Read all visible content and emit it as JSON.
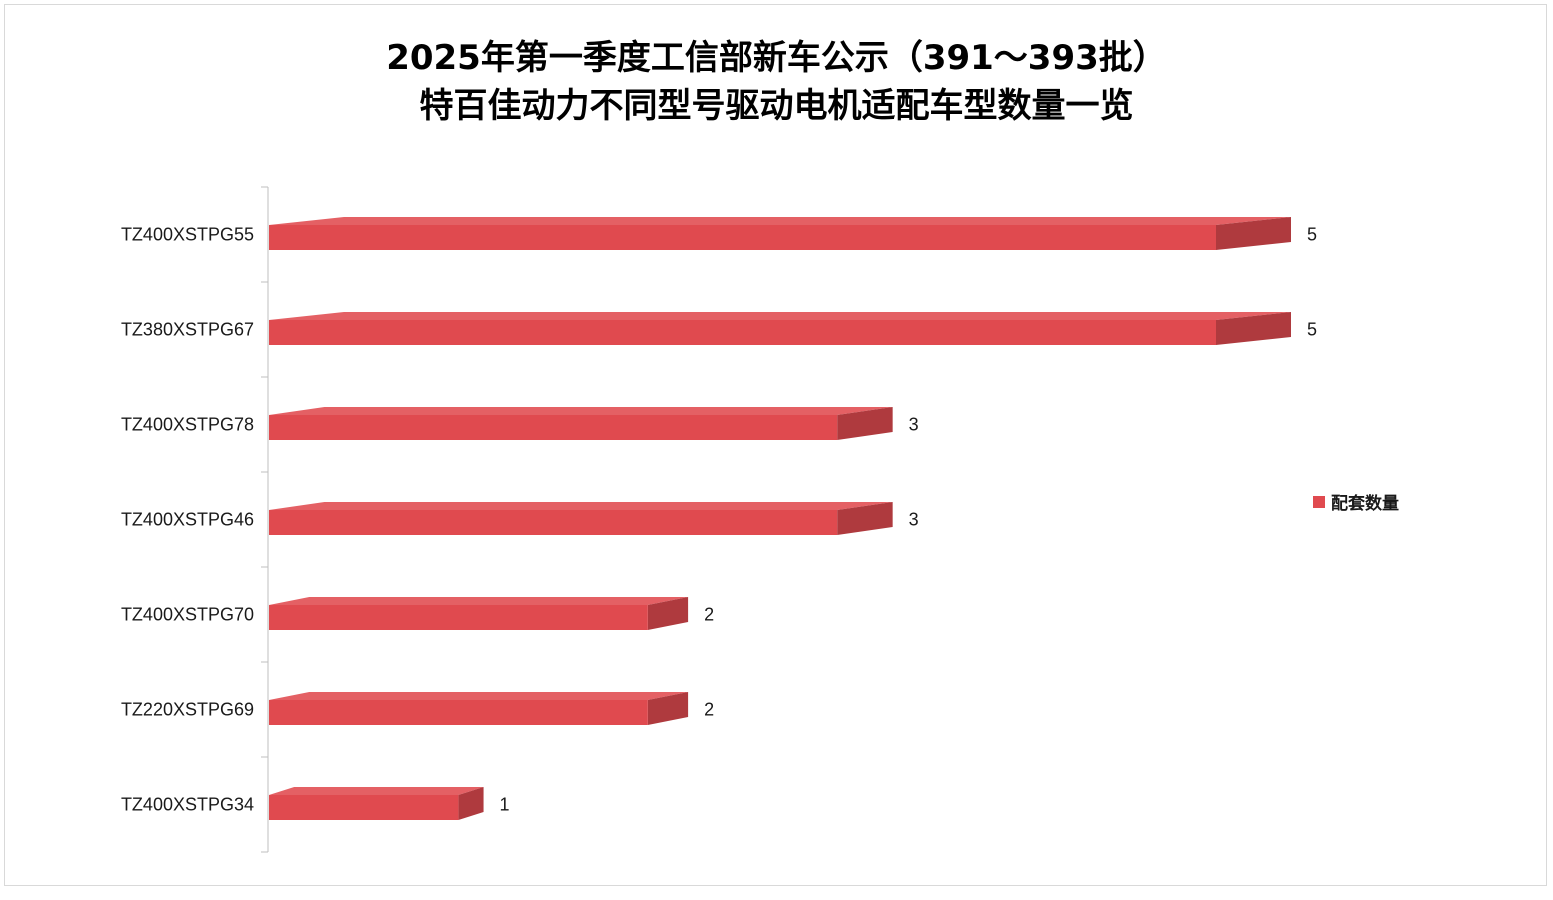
{
  "chart_data": {
    "type": "bar",
    "orientation": "horizontal",
    "style": "3d",
    "title": "2025年第一季度工信部新车公示（391～393批）",
    "subtitle": "特百佳动力不同型号驱动电机适配车型数量一览",
    "categories": [
      "TZ400XSTPG55",
      "TZ380XSTPG67",
      "TZ400XSTPG78",
      "TZ400XSTPG46",
      "TZ400XSTPG70",
      "TZ220XSTPG69",
      "TZ400XSTPG34"
    ],
    "series": [
      {
        "name": "配套数量",
        "values": [
          5,
          5,
          3,
          3,
          2,
          2,
          1
        ],
        "color": "#e04a4f"
      }
    ],
    "xlim": [
      0,
      5.4
    ],
    "grid": false,
    "data_labels": true,
    "legend_position": "right"
  }
}
